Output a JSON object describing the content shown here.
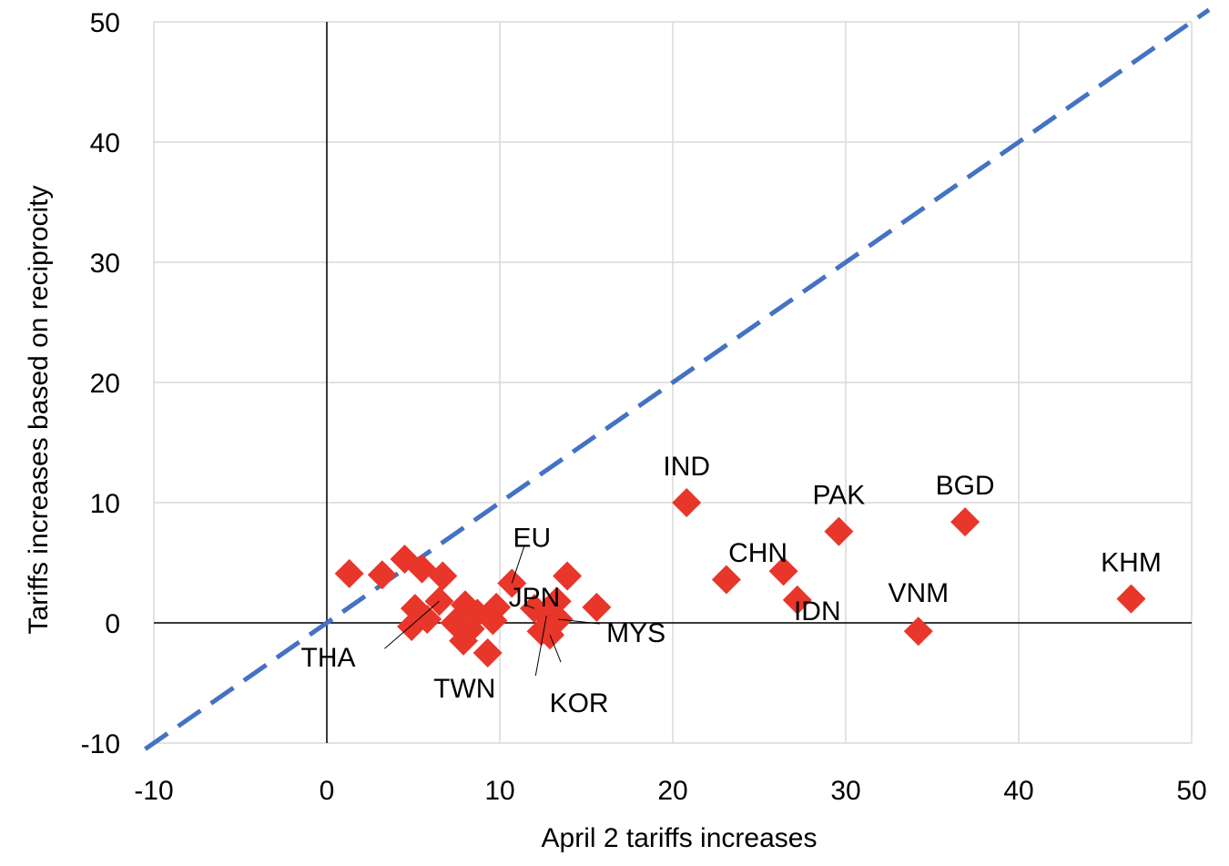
{
  "chart_data": {
    "type": "scatter",
    "xlabel": "April 2 tariffs increases",
    "ylabel": "Tariffs increases based on reciprocity",
    "xlim": [
      -10,
      50
    ],
    "ylim": [
      -10,
      50
    ],
    "xticks": [
      -10,
      0,
      10,
      20,
      30,
      40,
      50
    ],
    "yticks": [
      -10,
      0,
      10,
      20,
      30,
      40,
      50
    ],
    "grid": true,
    "marker": "diamond",
    "marker_color": "#E8362A",
    "reference_line": {
      "style": "dashed",
      "color": "#4472C4",
      "slope": 1,
      "intercept": 0
    },
    "points": [
      [
        1.3,
        4.1
      ],
      [
        3.2,
        4.0
      ],
      [
        4.5,
        5.3
      ],
      [
        5.5,
        4.5
      ],
      [
        6.7,
        3.9
      ],
      [
        5.1,
        1.2
      ],
      [
        4.9,
        -0.3
      ],
      [
        6.5,
        1.8
      ],
      [
        7.4,
        0.0
      ],
      [
        8.0,
        1.5
      ],
      [
        7.9,
        -1.5
      ],
      [
        8.7,
        0.8
      ],
      [
        9.3,
        -2.5
      ],
      [
        9.8,
        1.3
      ],
      [
        9.6,
        0.2
      ],
      [
        8.3,
        -0.5
      ],
      [
        5.8,
        0.3
      ],
      [
        10.7,
        3.3
      ],
      [
        13.9,
        3.9
      ],
      [
        15.6,
        1.3
      ],
      [
        12.0,
        1.2
      ],
      [
        13.3,
        1.8
      ],
      [
        12.4,
        -0.7
      ],
      [
        12.9,
        -1.0
      ],
      [
        13.4,
        0.3
      ],
      [
        12.7,
        0.6
      ],
      [
        20.8,
        10.0
      ],
      [
        23.1,
        3.6
      ],
      [
        26.4,
        4.3
      ],
      [
        27.2,
        1.9
      ],
      [
        29.6,
        7.6
      ],
      [
        34.2,
        -0.7
      ],
      [
        36.9,
        8.4
      ],
      [
        46.5,
        2.0
      ]
    ],
    "labels": [
      {
        "text": "IND",
        "x": 20.8,
        "y": 10.0
      },
      {
        "text": "PAK",
        "x": 29.6,
        "y": 7.6
      },
      {
        "text": "BGD",
        "x": 36.9,
        "y": 8.4
      },
      {
        "text": "CHN",
        "x": 26.4,
        "y": 4.3
      },
      {
        "text": "KHM",
        "x": 46.5,
        "y": 2.0
      },
      {
        "text": "VNM",
        "x": 34.2,
        "y": -0.7
      },
      {
        "text": "IDN",
        "x": 27.2,
        "y": 1.9
      },
      {
        "text": "EU",
        "x": 10.7,
        "y": 3.3
      },
      {
        "text": "JPN",
        "x": 12.0,
        "y": 1.2
      },
      {
        "text": "MYS",
        "x": 13.4,
        "y": 0.3
      },
      {
        "text": "KOR",
        "x": 12.9,
        "y": -1.0
      },
      {
        "text": "TWN",
        "x": 12.7,
        "y": 0.6
      },
      {
        "text": "THA",
        "x": 6.5,
        "y": 1.8
      }
    ]
  }
}
